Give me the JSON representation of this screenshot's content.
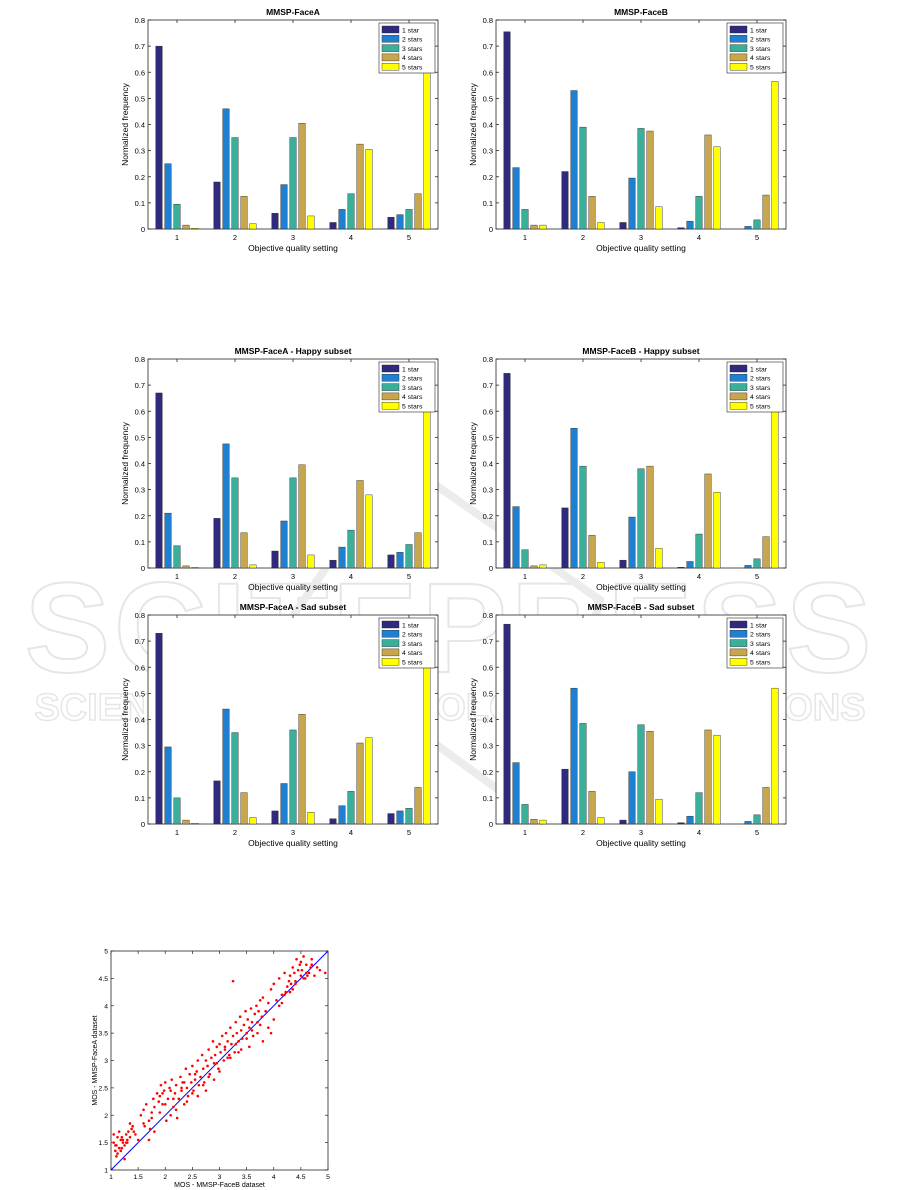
{
  "colors": {
    "star1": "#2f2a7e",
    "star2": "#1f7fd1",
    "star3": "#3ab09a",
    "star4": "#c7a64d",
    "star5": "#ffff00",
    "scatter_point": "#ff0000",
    "scatter_line": "#0000ff"
  },
  "watermark": {
    "big": "SCITEPRESS",
    "small": "SCIENCE AND TECHNOLOGY PUBLICATIONS"
  },
  "chart_data": [
    {
      "type": "bar",
      "title": "MMSP-FaceA",
      "xlabel": "Objective quality setting",
      "ylabel": "Normalized frequency",
      "ylim": [
        0,
        0.8
      ],
      "yticks": [
        "0",
        "0.1",
        "0.2",
        "0.3",
        "0.4",
        "0.5",
        "0.6",
        "0.7",
        "0.8"
      ],
      "categories": [
        "1",
        "2",
        "3",
        "4",
        "5"
      ],
      "legend_position": "top-right",
      "series": [
        {
          "name": "1 star",
          "values": [
            0.7,
            0.18,
            0.06,
            0.025,
            0.045
          ]
        },
        {
          "name": "2 stars",
          "values": [
            0.25,
            0.46,
            0.17,
            0.075,
            0.055
          ]
        },
        {
          "name": "3 stars",
          "values": [
            0.095,
            0.35,
            0.35,
            0.135,
            0.075
          ]
        },
        {
          "name": "4 stars",
          "values": [
            0.015,
            0.125,
            0.405,
            0.325,
            0.135
          ]
        },
        {
          "name": "5 stars",
          "values": [
            0.003,
            0.02,
            0.05,
            0.305,
            0.63
          ]
        }
      ]
    },
    {
      "type": "bar",
      "title": "MMSP-FaceB",
      "xlabel": "Objective quality setting",
      "ylabel": "Normalized frequency",
      "ylim": [
        0,
        0.8
      ],
      "yticks": [
        "0",
        "0.1",
        "0.2",
        "0.3",
        "0.4",
        "0.5",
        "0.6",
        "0.7",
        "0.8"
      ],
      "categories": [
        "1",
        "2",
        "3",
        "4",
        "5"
      ],
      "legend_position": "top-right",
      "series": [
        {
          "name": "1 star",
          "values": [
            0.755,
            0.22,
            0.025,
            0.005,
            0.0
          ]
        },
        {
          "name": "2 stars",
          "values": [
            0.235,
            0.53,
            0.195,
            0.03,
            0.01
          ]
        },
        {
          "name": "3 stars",
          "values": [
            0.075,
            0.39,
            0.385,
            0.125,
            0.035
          ]
        },
        {
          "name": "4 stars",
          "values": [
            0.015,
            0.125,
            0.375,
            0.36,
            0.13
          ]
        },
        {
          "name": "5 stars",
          "values": [
            0.015,
            0.025,
            0.085,
            0.315,
            0.565
          ]
        }
      ]
    },
    {
      "type": "bar",
      "title": "MMSP-FaceA - Happy subset",
      "xlabel": "Objective quality setting",
      "ylabel": "Normalized frequency",
      "ylim": [
        0,
        0.8
      ],
      "yticks": [
        "0",
        "0.1",
        "0.2",
        "0.3",
        "0.4",
        "0.5",
        "0.6",
        "0.7",
        "0.8"
      ],
      "categories": [
        "1",
        "2",
        "3",
        "4",
        "5"
      ],
      "legend_position": "top-right",
      "series": [
        {
          "name": "1 star",
          "values": [
            0.67,
            0.19,
            0.065,
            0.03,
            0.05
          ]
        },
        {
          "name": "2 stars",
          "values": [
            0.21,
            0.475,
            0.18,
            0.08,
            0.06
          ]
        },
        {
          "name": "3 stars",
          "values": [
            0.085,
            0.345,
            0.345,
            0.145,
            0.09
          ]
        },
        {
          "name": "4 stars",
          "values": [
            0.008,
            0.135,
            0.395,
            0.335,
            0.135
          ]
        },
        {
          "name": "5 stars",
          "values": [
            0.002,
            0.012,
            0.05,
            0.28,
            0.66
          ]
        }
      ]
    },
    {
      "type": "bar",
      "title": "MMSP-FaceB - Happy subset",
      "xlabel": "Objective quality setting",
      "ylabel": "Normalized frequency",
      "ylim": [
        0,
        0.8
      ],
      "yticks": [
        "0",
        "0.1",
        "0.2",
        "0.3",
        "0.4",
        "0.5",
        "0.6",
        "0.7",
        "0.8"
      ],
      "categories": [
        "1",
        "2",
        "3",
        "4",
        "5"
      ],
      "legend_position": "top-right",
      "series": [
        {
          "name": "1 star",
          "values": [
            0.745,
            0.23,
            0.03,
            0.003,
            0.0
          ]
        },
        {
          "name": "2 stars",
          "values": [
            0.235,
            0.535,
            0.195,
            0.025,
            0.01
          ]
        },
        {
          "name": "3 stars",
          "values": [
            0.07,
            0.39,
            0.38,
            0.13,
            0.035
          ]
        },
        {
          "name": "4 stars",
          "values": [
            0.008,
            0.125,
            0.39,
            0.36,
            0.12
          ]
        },
        {
          "name": "5 stars",
          "values": [
            0.012,
            0.022,
            0.075,
            0.29,
            0.605
          ]
        }
      ]
    },
    {
      "type": "bar",
      "title": "MMSP-FaceA - Sad subset",
      "xlabel": "Objective quality setting",
      "ylabel": "Normalized frequency",
      "ylim": [
        0,
        0.8
      ],
      "yticks": [
        "0",
        "0.1",
        "0.2",
        "0.3",
        "0.4",
        "0.5",
        "0.6",
        "0.7",
        "0.8"
      ],
      "categories": [
        "1",
        "2",
        "3",
        "4",
        "5"
      ],
      "legend_position": "top-right",
      "series": [
        {
          "name": "1 star",
          "values": [
            0.73,
            0.165,
            0.05,
            0.02,
            0.04
          ]
        },
        {
          "name": "2 stars",
          "values": [
            0.295,
            0.44,
            0.155,
            0.07,
            0.05
          ]
        },
        {
          "name": "3 stars",
          "values": [
            0.1,
            0.35,
            0.36,
            0.125,
            0.06
          ]
        },
        {
          "name": "4 stars",
          "values": [
            0.015,
            0.12,
            0.42,
            0.31,
            0.14
          ]
        },
        {
          "name": "5 stars",
          "values": [
            0.003,
            0.025,
            0.045,
            0.33,
            0.6
          ]
        }
      ]
    },
    {
      "type": "bar",
      "title": "MMSP-FaceB - Sad subset",
      "xlabel": "Objective quality setting",
      "ylabel": "Normalized frequency",
      "ylim": [
        0,
        0.8
      ],
      "yticks": [
        "0",
        "0.1",
        "0.2",
        "0.3",
        "0.4",
        "0.5",
        "0.6",
        "0.7",
        "0.8"
      ],
      "categories": [
        "1",
        "2",
        "3",
        "4",
        "5"
      ],
      "legend_position": "top-right",
      "series": [
        {
          "name": "1 star",
          "values": [
            0.765,
            0.21,
            0.015,
            0.005,
            0.0
          ]
        },
        {
          "name": "2 stars",
          "values": [
            0.235,
            0.52,
            0.2,
            0.03,
            0.01
          ]
        },
        {
          "name": "3 stars",
          "values": [
            0.075,
            0.385,
            0.38,
            0.12,
            0.035
          ]
        },
        {
          "name": "4 stars",
          "values": [
            0.018,
            0.125,
            0.355,
            0.36,
            0.14
          ]
        },
        {
          "name": "5 stars",
          "values": [
            0.015,
            0.025,
            0.095,
            0.34,
            0.52
          ]
        }
      ]
    },
    {
      "type": "scatter",
      "title": "",
      "xlabel": "MOS - MMSP-FaceB dataset",
      "ylabel": "MOS - MMSP-FaceA dataset",
      "xlim": [
        1,
        5
      ],
      "ylim": [
        1,
        5
      ],
      "xticks": [
        "1",
        "1.5",
        "2",
        "2.5",
        "3",
        "3.5",
        "4",
        "4.5",
        "5"
      ],
      "yticks": [
        "1",
        "1.5",
        "2",
        "2.5",
        "3",
        "3.5",
        "4",
        "4.5",
        "5"
      ],
      "reference_line": [
        [
          1,
          1
        ],
        [
          5,
          5
        ]
      ],
      "x": [
        1.05,
        1.08,
        1.1,
        1.12,
        1.15,
        1.18,
        1.2,
        1.22,
        1.25,
        1.28,
        1.3,
        1.32,
        1.35,
        1.38,
        1.4,
        1.42,
        1.45,
        1.05,
        1.1,
        1.15,
        1.2,
        1.25,
        1.3,
        1.35,
        1.08,
        1.12,
        1.18,
        1.22,
        1.28,
        1.5,
        1.55,
        1.6,
        1.62,
        1.65,
        1.7,
        1.72,
        1.75,
        1.78,
        1.8,
        1.85,
        1.88,
        1.9,
        1.92,
        1.95,
        1.98,
        2.0,
        2.02,
        2.05,
        2.08,
        2.1,
        2.12,
        2.15,
        2.18,
        2.2,
        2.22,
        2.25,
        2.28,
        2.3,
        2.32,
        2.35,
        2.38,
        2.4,
        2.42,
        2.45,
        2.48,
        2.5,
        2.52,
        2.55,
        2.58,
        2.6,
        2.62,
        2.65,
        2.68,
        2.7,
        2.72,
        2.75,
        2.78,
        2.8,
        2.82,
        2.85,
        2.88,
        2.9,
        2.92,
        2.95,
        2.98,
        3.0,
        3.02,
        3.05,
        3.08,
        3.1,
        3.12,
        3.15,
        3.18,
        3.2,
        3.22,
        3.25,
        3.28,
        3.3,
        3.32,
        3.35,
        3.38,
        3.4,
        3.42,
        3.45,
        3.48,
        3.5,
        3.52,
        3.55,
        3.58,
        3.6,
        3.62,
        3.65,
        3.68,
        3.7,
        3.72,
        3.75,
        3.78,
        3.8,
        3.85,
        3.9,
        3.95,
        4.0,
        4.05,
        4.1,
        4.15,
        4.2,
        4.25,
        4.3,
        4.35,
        4.4,
        4.45,
        4.5,
        4.55,
        4.6,
        4.65,
        4.7,
        4.75,
        4.8,
        4.85,
        4.95,
        1.6,
        1.7,
        1.8,
        1.9,
        2.0,
        2.1,
        2.2,
        2.3,
        2.4,
        2.5,
        2.6,
        2.7,
        2.8,
        2.9,
        3.0,
        3.1,
        3.2,
        3.3,
        3.4,
        3.5,
        3.6,
        3.7,
        3.8,
        3.9,
        4.0,
        4.1,
        4.2,
        4.3,
        4.4,
        4.5,
        4.6,
        4.7,
        1.75,
        1.95,
        2.15,
        2.35,
        2.55,
        2.75,
        2.95,
        3.15,
        3.35,
        3.55,
        3.75,
        3.95,
        4.15,
        4.35,
        4.55,
        4.42,
        4.48,
        4.52,
        4.58,
        4.62,
        4.68,
        4.38,
        4.32,
        4.28,
        4.22,
        3.25
      ],
      "y": [
        1.5,
        1.35,
        1.45,
        1.3,
        1.4,
        1.55,
        1.6,
        1.5,
        1.45,
        1.65,
        1.55,
        1.7,
        1.6,
        1.75,
        1.8,
        1.7,
        1.65,
        1.65,
        1.25,
        1.7,
        1.4,
        1.2,
        1.5,
        1.85,
        1.45,
        1.6,
        1.35,
        1.55,
        1.5,
        1.55,
        2.0,
        2.1,
        1.8,
        2.2,
        1.9,
        1.75,
        2.05,
        2.3,
        2.15,
        2.4,
        2.25,
        2.35,
        2.55,
        2.2,
        2.45,
        2.6,
        1.9,
        2.3,
        2.5,
        2.0,
        2.65,
        2.15,
        2.4,
        2.55,
        1.95,
        2.3,
        2.7,
        2.45,
        2.6,
        2.2,
        2.85,
        2.5,
        2.35,
        2.75,
        2.6,
        2.9,
        2.45,
        2.65,
        2.8,
        3.0,
        2.55,
        2.7,
        3.1,
        2.85,
        2.6,
        3.0,
        2.9,
        3.2,
        2.75,
        3.05,
        3.35,
        2.95,
        3.1,
        3.25,
        2.85,
        3.3,
        3.15,
        3.45,
        3.0,
        3.2,
        3.5,
        3.35,
        3.1,
        3.6,
        3.3,
        3.45,
        3.15,
        3.7,
        3.5,
        3.35,
        3.8,
        3.55,
        3.4,
        3.65,
        3.9,
        3.5,
        3.75,
        3.6,
        3.95,
        3.7,
        3.45,
        3.85,
        4.0,
        3.7,
        3.9,
        4.1,
        3.8,
        4.15,
        3.9,
        4.05,
        4.3,
        4.4,
        4.1,
        4.5,
        4.2,
        4.6,
        4.35,
        4.55,
        4.7,
        4.45,
        4.65,
        4.8,
        4.5,
        4.75,
        4.6,
        4.85,
        4.55,
        4.7,
        4.65,
        4.6,
        1.85,
        1.55,
        1.7,
        2.05,
        2.2,
        2.45,
        2.1,
        2.5,
        2.25,
        2.4,
        2.35,
        2.55,
        2.7,
        2.65,
        2.8,
        3.25,
        3.05,
        3.3,
        3.2,
        3.4,
        3.55,
        3.5,
        3.35,
        3.6,
        3.75,
        4.0,
        4.2,
        4.25,
        4.4,
        4.55,
        4.6,
        4.75,
        1.95,
        2.4,
        2.3,
        2.6,
        2.75,
        2.45,
        2.95,
        3.05,
        3.15,
        3.25,
        3.65,
        3.5,
        4.05,
        4.3,
        4.9,
        4.85,
        4.75,
        4.65,
        4.5,
        4.55,
        4.7,
        4.6,
        4.4,
        4.45,
        4.25,
        4.45
      ]
    }
  ]
}
